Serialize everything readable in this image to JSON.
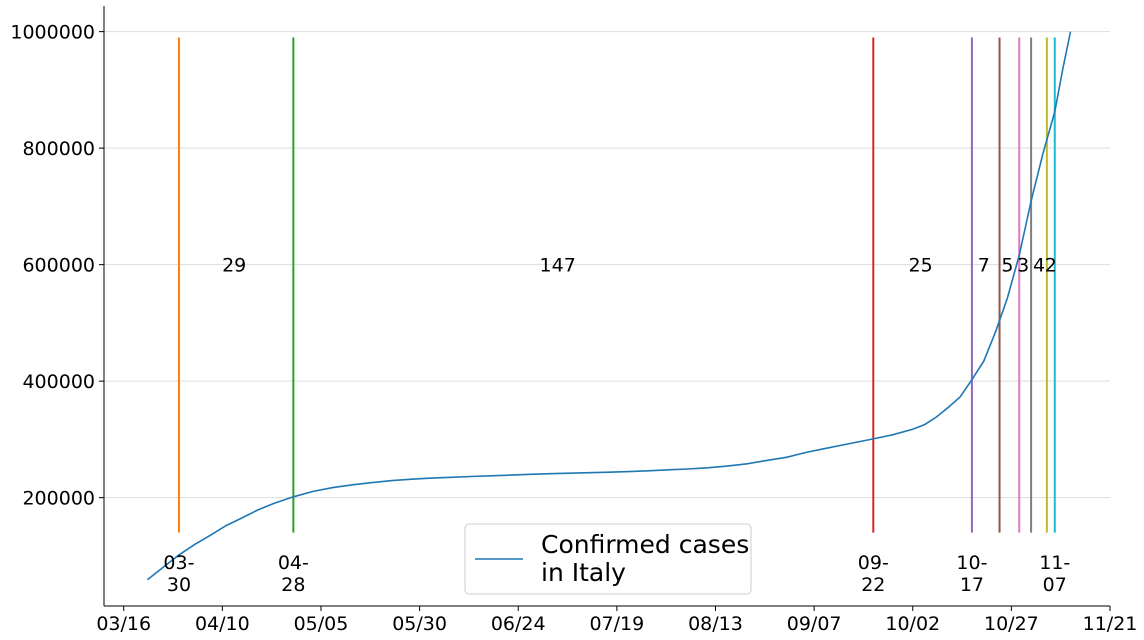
{
  "chart_data": {
    "type": "line",
    "title": "",
    "xlabel": "",
    "ylabel": "",
    "x_tick_labels": [
      "03/16",
      "04/10",
      "05/05",
      "05/30",
      "06/24",
      "07/19",
      "08/13",
      "09/07",
      "10/02",
      "10/27",
      "11/21"
    ],
    "x_ticks": [
      "2020-03-16",
      "2020-04-10",
      "2020-05-05",
      "2020-05-30",
      "2020-06-24",
      "2020-07-19",
      "2020-08-13",
      "2020-09-07",
      "2020-10-02",
      "2020-10-27",
      "2020-11-21"
    ],
    "xlim": [
      "2020-03-11",
      "2020-11-21"
    ],
    "y_tick_labels": [
      "200000",
      "400000",
      "600000",
      "800000",
      "1000000"
    ],
    "y_ticks": [
      200000,
      400000,
      600000,
      800000,
      1000000
    ],
    "ylim": [
      14000,
      1044000
    ],
    "grid": "horizontal",
    "legend": {
      "position": "bottom-center",
      "entries": [
        "Confirmed cases\nin Italy"
      ]
    },
    "series": [
      {
        "name": "Confirmed cases\nin Italy",
        "color": "#1f77b4",
        "points": [
          [
            "2020-03-22",
            59138
          ],
          [
            "2020-03-26",
            80539
          ],
          [
            "2020-03-30",
            101739
          ],
          [
            "2020-04-03",
            119827
          ],
          [
            "2020-04-07",
            135586
          ],
          [
            "2020-04-11",
            152271
          ],
          [
            "2020-04-15",
            165155
          ],
          [
            "2020-04-19",
            178972
          ],
          [
            "2020-04-23",
            189973
          ],
          [
            "2020-04-28",
            201505
          ],
          [
            "2020-05-03",
            210717
          ],
          [
            "2020-05-08",
            217185
          ],
          [
            "2020-05-13",
            222104
          ],
          [
            "2020-05-18",
            225886
          ],
          [
            "2020-05-23",
            229327
          ],
          [
            "2020-05-28",
            231732
          ],
          [
            "2020-06-02",
            233515
          ],
          [
            "2020-06-07",
            234998
          ],
          [
            "2020-06-12",
            236305
          ],
          [
            "2020-06-17",
            237500
          ],
          [
            "2020-06-22",
            238720
          ],
          [
            "2020-06-27",
            240136
          ],
          [
            "2020-07-02",
            241184
          ],
          [
            "2020-07-07",
            241956
          ],
          [
            "2020-07-12",
            242827
          ],
          [
            "2020-07-17",
            243736
          ],
          [
            "2020-07-22",
            244752
          ],
          [
            "2020-07-27",
            246118
          ],
          [
            "2020-08-01",
            247832
          ],
          [
            "2020-08-06",
            249204
          ],
          [
            "2020-08-11",
            251237
          ],
          [
            "2020-08-16",
            254235
          ],
          [
            "2020-08-21",
            258136
          ],
          [
            "2020-08-26",
            263949
          ],
          [
            "2020-08-31",
            269214
          ],
          [
            "2020-09-05",
            277634
          ],
          [
            "2020-09-10",
            284796
          ],
          [
            "2020-09-15",
            291442
          ],
          [
            "2020-09-22",
            300897
          ],
          [
            "2020-09-27",
            308104
          ],
          [
            "2020-10-02",
            317409
          ],
          [
            "2020-10-05",
            325329
          ],
          [
            "2020-10-08",
            338398
          ],
          [
            "2020-10-11",
            354950
          ],
          [
            "2020-10-14",
            372799
          ],
          [
            "2020-10-17",
            402536
          ],
          [
            "2020-10-20",
            434449
          ],
          [
            "2020-10-23",
            484869
          ],
          [
            "2020-10-26",
            542789
          ],
          [
            "2020-10-29",
            616595
          ],
          [
            "2020-11-01",
            709335
          ],
          [
            "2020-11-04",
            790377
          ],
          [
            "2020-11-07",
            862681
          ],
          [
            "2020-11-09",
            935104
          ],
          [
            "2020-11-11",
            1000000
          ]
        ]
      }
    ],
    "vertical_markers": [
      {
        "date": "2020-03-30",
        "label": "03-\n30",
        "color": "#ff7f0e"
      },
      {
        "date": "2020-04-28",
        "label": "04-\n28",
        "color": "#2ca02c"
      },
      {
        "date": "2020-09-22",
        "label": "09-\n22",
        "color": "#d62728"
      },
      {
        "date": "2020-10-17",
        "label": "10-\n17",
        "color": "#9467bd"
      },
      {
        "date": "2020-10-24",
        "label": "",
        "color": "#8c564b"
      },
      {
        "date": "2020-10-29",
        "label": "",
        "color": "#e377c2"
      },
      {
        "date": "2020-11-01",
        "label": "",
        "color": "#7f7f7f"
      },
      {
        "date": "2020-11-05",
        "label": "",
        "color": "#bcbd22"
      },
      {
        "date": "2020-11-07",
        "label": "11-\n07",
        "color": "#17becf"
      }
    ],
    "marker_range": [
      140000,
      990000
    ],
    "interval_labels": [
      {
        "text": "29",
        "date": "2020-04-13",
        "y": 600000
      },
      {
        "text": "147",
        "date": "2020-07-04",
        "y": 600000
      },
      {
        "text": "25",
        "date": "2020-10-04",
        "y": 600000
      },
      {
        "text": "7",
        "date": "2020-10-20",
        "y": 600000
      },
      {
        "text": "5",
        "date": "2020-10-26",
        "y": 600000
      },
      {
        "text": "3",
        "date": "2020-10-30",
        "y": 600000
      },
      {
        "text": "4",
        "date": "2020-11-03",
        "y": 600000
      },
      {
        "text": "2",
        "date": "2020-11-06",
        "y": 600000
      }
    ]
  }
}
